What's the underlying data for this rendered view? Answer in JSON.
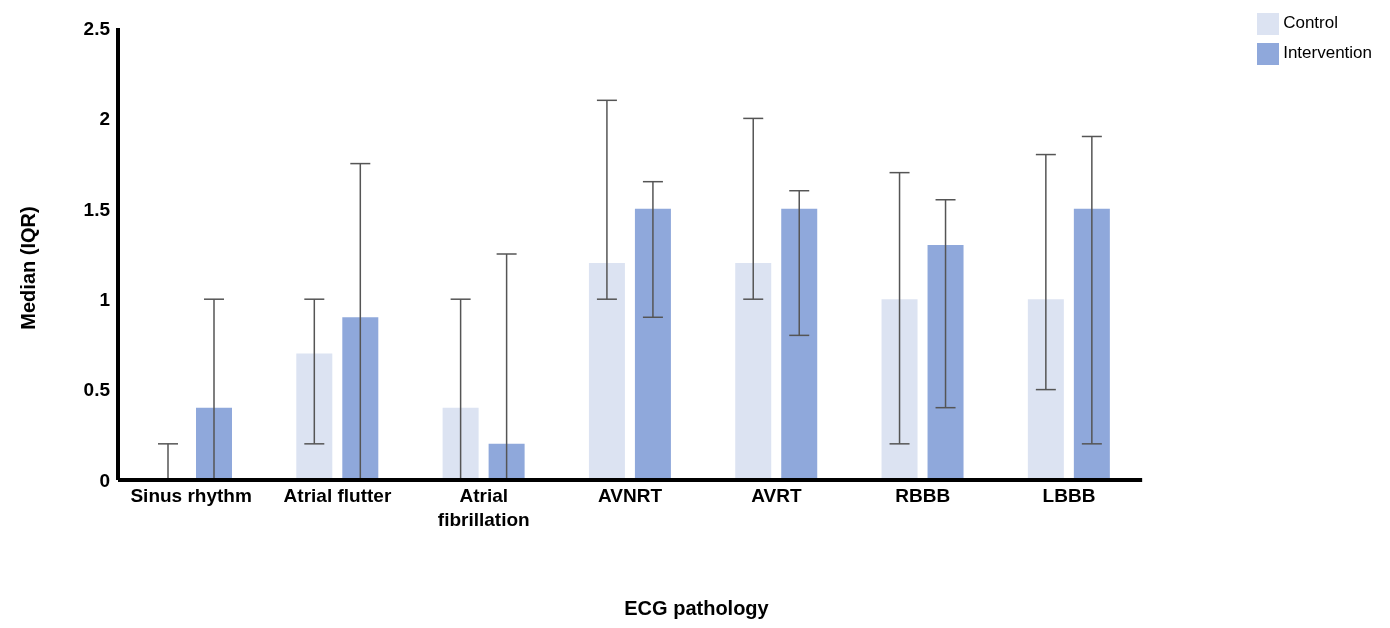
{
  "chart_data": {
    "type": "bar",
    "xlabel": "ECG pathology",
    "ylabel": "Median (IQR)",
    "categories": [
      "Sinus rhythm",
      "Atrial flutter",
      "Atrial fibrillation",
      "AVNRT",
      "AVRT",
      "RBBB",
      "LBBB"
    ],
    "series": [
      {
        "name": "Control",
        "color": "#dce3f2",
        "values": [
          0,
          0.7,
          0.4,
          1.2,
          1.2,
          1.0,
          1.0
        ],
        "errors": [
          [
            0,
            0.2
          ],
          [
            0.2,
            1.0
          ],
          [
            0,
            1.0
          ],
          [
            1.0,
            2.1
          ],
          [
            1.0,
            2.0
          ],
          [
            0.2,
            1.7
          ],
          [
            0.5,
            1.8
          ]
        ]
      },
      {
        "name": "Intervention",
        "color": "#8fa8db",
        "values": [
          0.4,
          0.9,
          0.2,
          1.5,
          1.5,
          1.3,
          1.5
        ],
        "errors": [
          [
            0,
            1.0
          ],
          [
            0,
            1.75
          ],
          [
            0,
            1.25
          ],
          [
            0.9,
            1.65
          ],
          [
            0.8,
            1.6
          ],
          [
            0.4,
            1.55
          ],
          [
            0.2,
            1.9
          ]
        ]
      }
    ],
    "ylim": [
      0,
      2.5
    ],
    "yticks": [
      0,
      0.5,
      1,
      1.5,
      2,
      2.5
    ],
    "grid": false,
    "legend": "top right"
  }
}
